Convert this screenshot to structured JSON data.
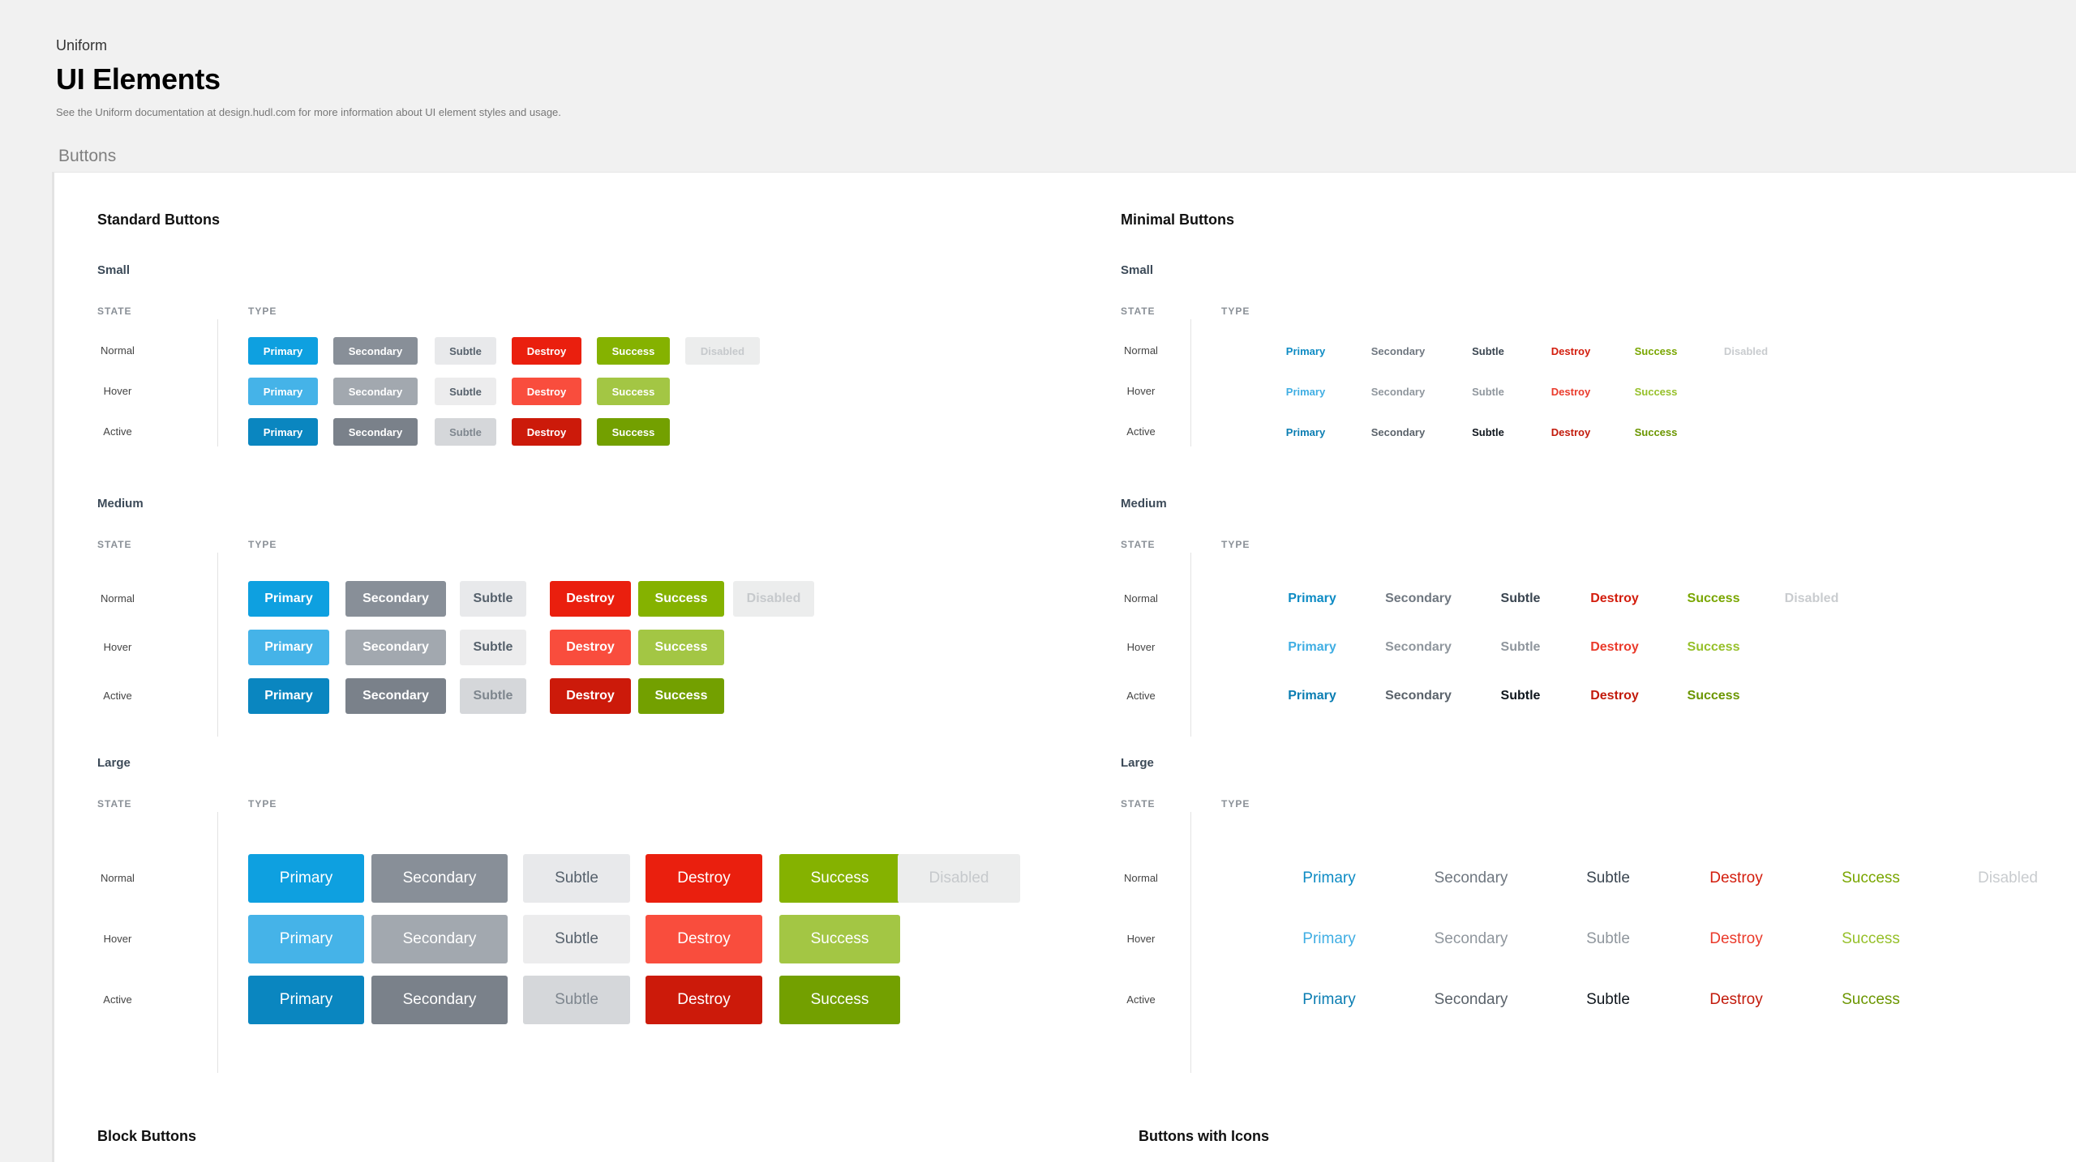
{
  "header": {
    "eyebrow": "Uniform",
    "title": "UI Elements",
    "subtitle": "See the Uniform documentation at design.hudl.com for more information about UI element styles and usage."
  },
  "section": {
    "label": "Buttons"
  },
  "standard": {
    "title": "Standard Buttons",
    "state_header": "STATE",
    "type_header": "TYPE",
    "groups": [
      {
        "title": "Small"
      },
      {
        "title": "Medium"
      },
      {
        "title": "Large"
      }
    ]
  },
  "minimal": {
    "title": "Minimal Buttons",
    "state_header": "STATE",
    "type_header": "TYPE",
    "groups": [
      {
        "title": "Small"
      },
      {
        "title": "Medium"
      },
      {
        "title": "Large"
      }
    ]
  },
  "states": [
    "Normal",
    "Hover",
    "Active"
  ],
  "button_labels": [
    "Primary",
    "Secondary",
    "Subtle",
    "Destroy",
    "Success",
    "Disabled"
  ],
  "colors": {
    "standard": {
      "Normal": [
        "#0ea0e0",
        "#888f98",
        "#e8e9eb",
        "#ea1f0e",
        "#85b200",
        "#eceded"
      ],
      "Hover": [
        "#45b3e8",
        "#a2a8af",
        "#ececed",
        "#f94d3d",
        "#a3c644"
      ],
      "Active": [
        "#0a86c0",
        "#7a818a",
        "#d5d7da",
        "#cc1a0a",
        "#73a000"
      ]
    },
    "standard_text": {
      "Normal": [
        "#ffffff",
        "#ffffff",
        "#56616c",
        "#ffffff",
        "#ffffff",
        "#c6c9cc"
      ],
      "Hover": [
        "#ffffff",
        "#ffffff",
        "#56616c",
        "#ffffff",
        "#ffffff"
      ],
      "Active": [
        "#ffffff",
        "#ffffff",
        "#7e868e",
        "#ffffff",
        "#ffffff"
      ]
    },
    "minimal_text": {
      "Normal": [
        "#0d8bc4",
        "#6f7780",
        "#3a4550",
        "#d31c0c",
        "#79a600",
        "#c9cccf"
      ],
      "Hover": [
        "#40aee3",
        "#8f969d",
        "#8f969d",
        "#ea3a2b",
        "#96c02a"
      ],
      "Active": [
        "#0a7db2",
        "#5b636b",
        "#0f161d",
        "#c21a0b",
        "#6b9600"
      ]
    }
  },
  "bottom": {
    "left_title": "Block Buttons",
    "right_title": "Buttons with Icons"
  }
}
